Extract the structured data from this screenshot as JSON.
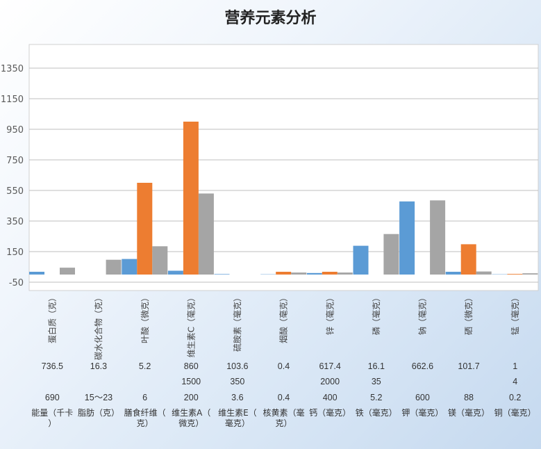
{
  "chart_data": {
    "type": "bar",
    "title": "营养元素分析",
    "ylim": [
      -50,
      1450
    ],
    "yticks": [
      -50,
      150,
      350,
      550,
      750,
      950,
      1150,
      1350
    ],
    "grid": true,
    "colors": [
      "#5b9bd5",
      "#ed7d31",
      "#a5a5a5"
    ],
    "categories": [
      "蛋白质（克）",
      "碳水化合物（克）",
      "叶酸（微克）",
      "维生素C（毫克）",
      "硫胺素（毫克）",
      "烟酸（毫克）",
      "锌（毫克）",
      "磷（毫克）",
      "钠（毫克）",
      "硒（微克）",
      "锰（毫克）"
    ],
    "series": [
      {
        "values": [
          18,
          0,
          102,
          25,
          3,
          2,
          10,
          188,
          478,
          18,
          2
        ]
      },
      {
        "values": [
          0,
          0,
          600,
          1000,
          0,
          18,
          18,
          0,
          0,
          198,
          4
        ]
      },
      {
        "values": [
          45,
          97,
          185,
          530,
          0,
          13,
          13,
          265,
          485,
          20,
          8
        ]
      }
    ],
    "table": {
      "rows": [
        [
          "736.5",
          "16.3",
          "5.2",
          "860",
          "103.6",
          "0.4",
          "617.4",
          "16.1",
          "662.6",
          "101.7",
          "1"
        ],
        [
          "",
          "",
          "",
          "1500",
          "350",
          "",
          "2000",
          "35",
          "",
          "",
          "4"
        ],
        [
          "690",
          "15～23",
          "6",
          "200",
          "3.6",
          "0.4",
          "400",
          "5.2",
          "600",
          "88",
          "0.2"
        ]
      ],
      "labels": [
        "能量（千卡）",
        "脂肪（克）",
        "膳食纤维（克）",
        "维生素A（微克）",
        "维生素E（毫克）",
        "核黄素（毫克）",
        "钙（毫克）",
        "铁（毫克）",
        "钾（毫克）",
        "镁（毫克）",
        "铜（毫克）"
      ]
    }
  }
}
